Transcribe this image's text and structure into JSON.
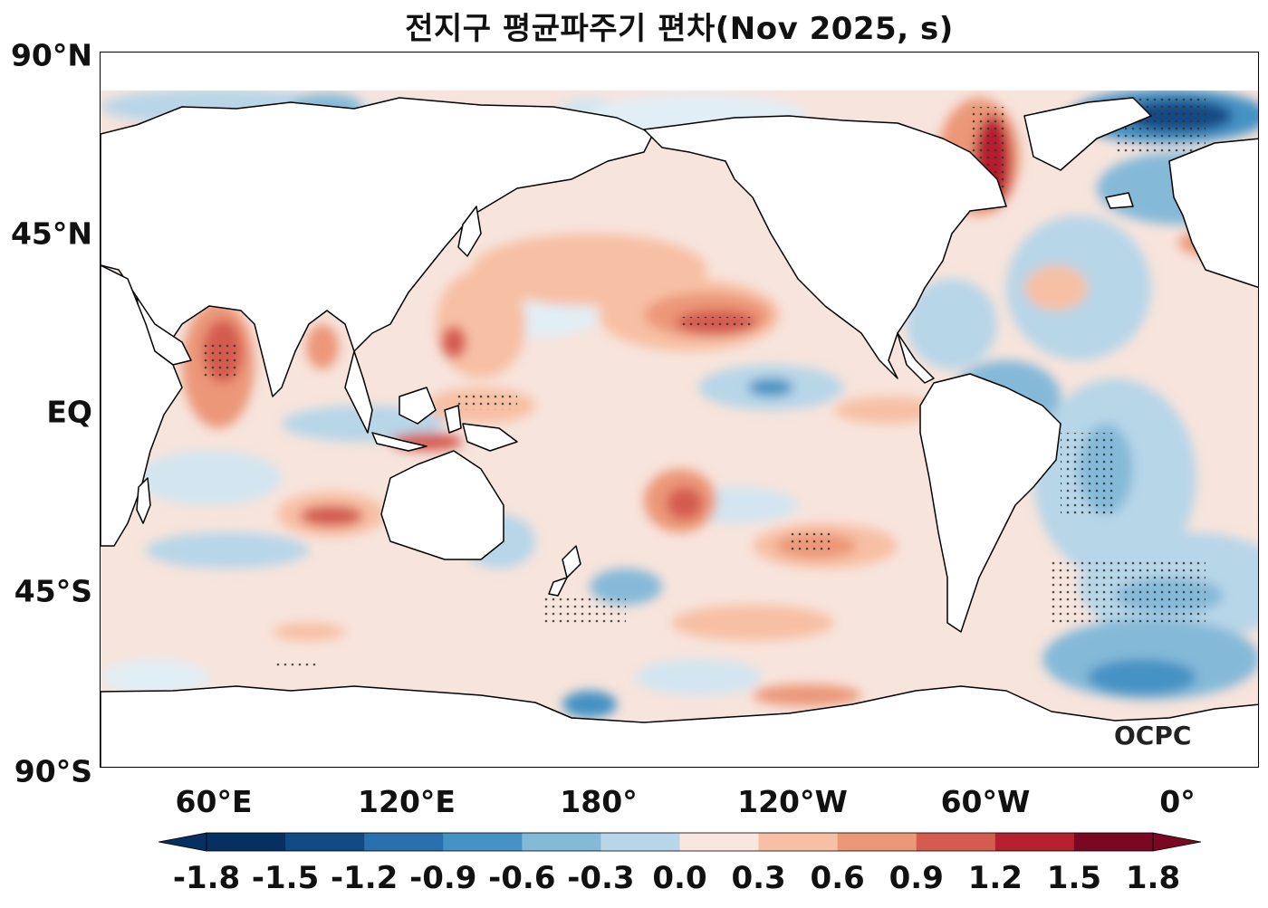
{
  "title": "전지구 평균파주기 편차(Nov 2025, s)",
  "watermark": "OCPC",
  "map": {
    "projection": "equirectangular",
    "lon_range": [
      31,
      391
    ],
    "lat_range": [
      -90,
      90
    ],
    "land_color": "#ffffff",
    "coastline_color": "#000000",
    "lat_ticks": [
      "90°N",
      "45°N",
      "EQ",
      "45°S",
      "90°S"
    ],
    "lon_ticks": [
      "60°E",
      "120°E",
      "180°",
      "120°W",
      "60°W",
      "0°"
    ],
    "stippling": "significance dots over strong anomaly regions"
  },
  "colorbar": {
    "ticks": [
      "-1.8",
      "-1.5",
      "-1.2",
      "-0.9",
      "-0.6",
      "-0.3",
      "0.0",
      "0.3",
      "0.6",
      "0.9",
      "1.2",
      "1.5",
      "1.8"
    ],
    "colors": [
      "#053061",
      "#124a84",
      "#2a6fae",
      "#4592c4",
      "#84b9d8",
      "#b7d6e8",
      "#e2eef5",
      "#f9e6df",
      "#f7c0a4",
      "#ec9778",
      "#d45c4f",
      "#b51f2e",
      "#7a0822"
    ],
    "extend": "both"
  }
}
